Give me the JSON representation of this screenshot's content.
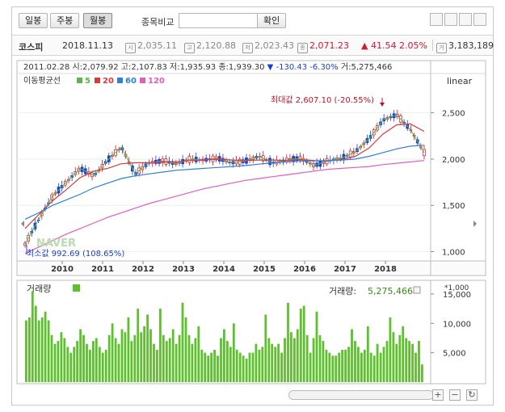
{
  "toolbar": {
    "daily": "일봉",
    "weekly": "주봉",
    "monthly": "월봉",
    "compare_label": "종목비교",
    "compare_value": "",
    "confirm": "확인"
  },
  "info": {
    "name": "코스피",
    "date": "2018.11.13",
    "v1": "2,035.11",
    "v2": "2,120.88",
    "v3": "2,023.43",
    "v4": "2,071.23",
    "change": "▲ 41.54",
    "change_pct": "2.05%",
    "volume": "3,183,189"
  },
  "ohlc": {
    "date": "2011.02.28",
    "open_label": "시:",
    "open": "2,079.92",
    "high_label": "고:",
    "high": "2,107.83",
    "low_label": "저:",
    "low": "1,935.93",
    "close_label": "종:",
    "close": "1,939.30",
    "chg": "▼ -130.43",
    "chg_pct": "-6.30%",
    "vol_label": "거:",
    "vol": "5,275,466"
  },
  "legend": {
    "title": "이동평균선",
    "ma5": "5",
    "ma20": "20",
    "ma60": "60",
    "ma120": "120"
  },
  "annotations": {
    "scale": "linear",
    "max_label": "최대값 2,607.10 (-20.55%)",
    "min_label": "최소값 992.69 (108.65%)",
    "watermark": "NAVER",
    "vol_title": "거래량",
    "vol_label": "거래량:",
    "vol_value": "5,275,466",
    "vol_unit": "*1,000"
  },
  "colors": {
    "up": "#d6162f",
    "down": "#1a3fd4",
    "ma5": "#57b846",
    "ma20": "#d93a3a",
    "ma60": "#2f7fdc",
    "ma120": "#e75bbf",
    "volume": "#5cc12c"
  },
  "chart_data": {
    "type": "line",
    "title": "",
    "xlabel": "",
    "ylabel": "",
    "price_ylim": [
      900,
      2750
    ],
    "price_yticks": [
      "1,000",
      "1,500",
      "2,000",
      "2,500"
    ],
    "xticks": [
      "2010",
      "2011",
      "2012",
      "2013",
      "2014",
      "2015",
      "2016",
      "2017",
      "2018"
    ],
    "series": [
      {
        "name": "5",
        "values": [
          1080,
          1350,
          1600,
          1750,
          1900,
          1820,
          1990,
          2130,
          1840,
          1960,
          1980,
          1950,
          2000,
          1990,
          2010,
          1960,
          1980,
          2030,
          1960,
          1990,
          2010,
          1930,
          1980,
          2010,
          2080,
          2220,
          2420,
          2480,
          2320,
          2070
        ]
      },
      {
        "name": "20",
        "values": [
          1250,
          1400,
          1550,
          1670,
          1800,
          1870,
          1900,
          1950,
          1960,
          1960,
          1970,
          1970,
          1985,
          1990,
          2000,
          1990,
          1985,
          1990,
          1990,
          1985,
          1995,
          1985,
          1980,
          1995,
          2030,
          2120,
          2270,
          2370,
          2380,
          2300
        ]
      },
      {
        "name": "60",
        "values": [
          1350,
          1420,
          1500,
          1560,
          1620,
          1690,
          1740,
          1790,
          1820,
          1840,
          1860,
          1880,
          1890,
          1900,
          1910,
          1920,
          1930,
          1945,
          1960,
          1970,
          1980,
          1980,
          1985,
          1990,
          2000,
          2030,
          2070,
          2110,
          2140,
          2150
        ]
      },
      {
        "name": "120",
        "values": [
          980,
          1050,
          1120,
          1190,
          1250,
          1310,
          1370,
          1420,
          1470,
          1520,
          1560,
          1600,
          1640,
          1680,
          1710,
          1740,
          1770,
          1790,
          1810,
          1830,
          1850,
          1870,
          1890,
          1900,
          1910,
          1920,
          1940,
          1955,
          1970,
          1985
        ]
      }
    ],
    "volume": {
      "name": "거래량",
      "unit": "*1,000",
      "ylim": [
        0,
        16500
      ],
      "yticks": [
        "5,000",
        "10,000",
        "15,000"
      ],
      "values": [
        10500,
        11000,
        15500,
        13000,
        10500,
        11000,
        12000,
        10500,
        8000,
        6500,
        7000,
        8500,
        7500,
        6000,
        5000,
        6000,
        7000,
        9000,
        8000,
        6500,
        5500,
        7000,
        7500,
        6000,
        5000,
        5500,
        8000,
        10000,
        7500,
        6500,
        9000,
        8500,
        11000,
        7000,
        8000,
        12500,
        8500,
        9500,
        11500,
        9000,
        6500,
        5500,
        12500,
        8000,
        7000,
        7500,
        9000,
        6500,
        8000,
        13500,
        11000,
        8000,
        6500,
        7500,
        9500,
        5500,
        5000,
        4500,
        5000,
        5500,
        4500,
        7500,
        9000,
        7000,
        6000,
        10000,
        5500,
        5000,
        4500,
        4000,
        5000,
        5000,
        6500,
        5500,
        6000,
        11500,
        7500,
        6500,
        6000,
        6500,
        5000,
        7500,
        13500,
        8500,
        7500,
        9000,
        12500,
        13000,
        8000,
        5000,
        7500,
        12000,
        8000,
        7000,
        5500,
        5000,
        4500,
        4500,
        5000,
        5500,
        5500,
        6000,
        9000,
        7000,
        6000,
        5000,
        5500,
        9500,
        5000,
        4500,
        6500,
        5000,
        6000,
        7000,
        11000,
        8500,
        6500,
        8000,
        9500,
        7500,
        7000,
        6500,
        5000,
        7000,
        3000
      ]
    }
  }
}
